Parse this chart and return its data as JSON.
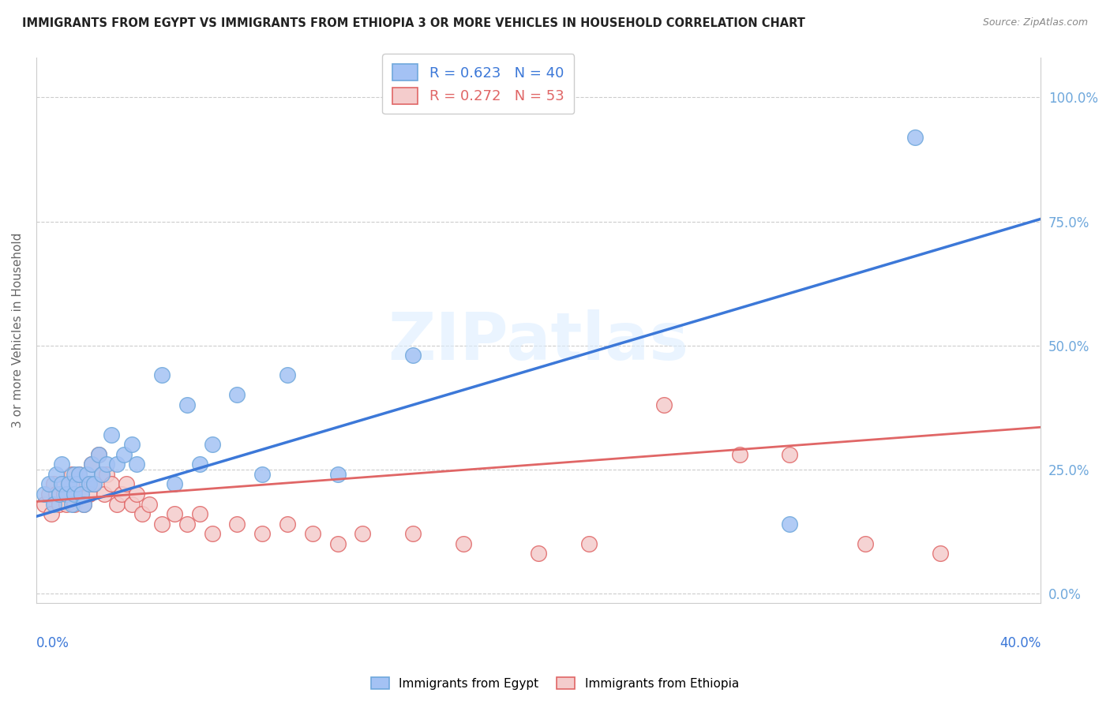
{
  "title": "IMMIGRANTS FROM EGYPT VS IMMIGRANTS FROM ETHIOPIA 3 OR MORE VEHICLES IN HOUSEHOLD CORRELATION CHART",
  "source": "Source: ZipAtlas.com",
  "ylabel": "3 or more Vehicles in Household",
  "xlim": [
    0.0,
    0.4
  ],
  "ylim": [
    -0.02,
    1.08
  ],
  "egypt_color_fill": "#a4c2f4",
  "egypt_edge": "#6fa8dc",
  "ethiopia_color_fill": "#f4cccc",
  "ethiopia_edge": "#e06666",
  "egypt_R": 0.623,
  "egypt_N": 40,
  "ethiopia_R": 0.272,
  "ethiopia_N": 53,
  "watermark_text": "ZIPatlas",
  "egypt_line_color": "#3c78d8",
  "ethiopia_line_color": "#e06666",
  "grid_color": "#cccccc",
  "right_axis_color": "#6fa8dc",
  "egypt_scatter_x": [
    0.003,
    0.005,
    0.007,
    0.008,
    0.009,
    0.01,
    0.01,
    0.012,
    0.013,
    0.014,
    0.015,
    0.015,
    0.016,
    0.017,
    0.018,
    0.019,
    0.02,
    0.021,
    0.022,
    0.023,
    0.025,
    0.026,
    0.028,
    0.03,
    0.032,
    0.035,
    0.038,
    0.04,
    0.05,
    0.055,
    0.06,
    0.065,
    0.07,
    0.08,
    0.09,
    0.1,
    0.12,
    0.15,
    0.3,
    0.35
  ],
  "egypt_scatter_y": [
    0.2,
    0.22,
    0.18,
    0.24,
    0.2,
    0.22,
    0.26,
    0.2,
    0.22,
    0.18,
    0.24,
    0.2,
    0.22,
    0.24,
    0.2,
    0.18,
    0.24,
    0.22,
    0.26,
    0.22,
    0.28,
    0.24,
    0.26,
    0.32,
    0.26,
    0.28,
    0.3,
    0.26,
    0.44,
    0.22,
    0.38,
    0.26,
    0.3,
    0.4,
    0.24,
    0.44,
    0.24,
    0.48,
    0.14,
    0.92
  ],
  "ethiopia_scatter_x": [
    0.003,
    0.005,
    0.006,
    0.007,
    0.008,
    0.009,
    0.01,
    0.011,
    0.012,
    0.013,
    0.014,
    0.015,
    0.015,
    0.016,
    0.017,
    0.018,
    0.019,
    0.02,
    0.021,
    0.022,
    0.023,
    0.025,
    0.026,
    0.027,
    0.028,
    0.03,
    0.032,
    0.034,
    0.036,
    0.038,
    0.04,
    0.042,
    0.045,
    0.05,
    0.055,
    0.06,
    0.065,
    0.07,
    0.08,
    0.09,
    0.1,
    0.11,
    0.12,
    0.13,
    0.15,
    0.17,
    0.2,
    0.22,
    0.25,
    0.28,
    0.3,
    0.33,
    0.36
  ],
  "ethiopia_scatter_y": [
    0.18,
    0.2,
    0.16,
    0.22,
    0.2,
    0.18,
    0.22,
    0.2,
    0.18,
    0.22,
    0.24,
    0.2,
    0.18,
    0.22,
    0.24,
    0.2,
    0.18,
    0.22,
    0.2,
    0.26,
    0.22,
    0.28,
    0.24,
    0.2,
    0.24,
    0.22,
    0.18,
    0.2,
    0.22,
    0.18,
    0.2,
    0.16,
    0.18,
    0.14,
    0.16,
    0.14,
    0.16,
    0.12,
    0.14,
    0.12,
    0.14,
    0.12,
    0.1,
    0.12,
    0.12,
    0.1,
    0.08,
    0.1,
    0.38,
    0.28,
    0.28,
    0.1,
    0.08
  ],
  "egypt_line_x0": 0.0,
  "egypt_line_y0": 0.155,
  "egypt_line_x1": 0.4,
  "egypt_line_y1": 0.755,
  "ethiopia_line_x0": 0.0,
  "ethiopia_line_y0": 0.185,
  "ethiopia_line_x1": 0.4,
  "ethiopia_line_y1": 0.335,
  "ytick_vals": [
    0.0,
    0.25,
    0.5,
    0.75,
    1.0
  ],
  "ytick_labels_right": [
    "0.0%",
    "25.0%",
    "50.0%",
    "75.0%",
    "100.0%"
  ]
}
